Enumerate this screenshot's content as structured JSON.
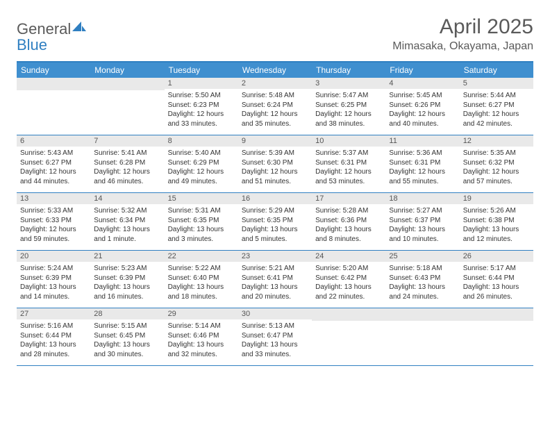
{
  "brand": {
    "part1": "General",
    "part2": "Blue"
  },
  "title": "April 2025",
  "location": "Mimasaka, Okayama, Japan",
  "colors": {
    "header_bar": "#3f8fcf",
    "accent_border": "#2f7fc1",
    "daynum_bg": "#e9e9e9",
    "text_gray": "#5a5a5a",
    "body_text": "#333333",
    "background": "#ffffff"
  },
  "typography": {
    "title_fontsize": 30,
    "location_fontsize": 16,
    "dayhead_fontsize": 12,
    "daynum_fontsize": 11,
    "body_fontsize": 10
  },
  "dayheads": [
    "Sunday",
    "Monday",
    "Tuesday",
    "Wednesday",
    "Thursday",
    "Friday",
    "Saturday"
  ],
  "weeks": [
    [
      {
        "n": "",
        "sr": "",
        "ss": "",
        "dl": ""
      },
      {
        "n": "",
        "sr": "",
        "ss": "",
        "dl": ""
      },
      {
        "n": "1",
        "sr": "Sunrise: 5:50 AM",
        "ss": "Sunset: 6:23 PM",
        "dl": "Daylight: 12 hours and 33 minutes."
      },
      {
        "n": "2",
        "sr": "Sunrise: 5:48 AM",
        "ss": "Sunset: 6:24 PM",
        "dl": "Daylight: 12 hours and 35 minutes."
      },
      {
        "n": "3",
        "sr": "Sunrise: 5:47 AM",
        "ss": "Sunset: 6:25 PM",
        "dl": "Daylight: 12 hours and 38 minutes."
      },
      {
        "n": "4",
        "sr": "Sunrise: 5:45 AM",
        "ss": "Sunset: 6:26 PM",
        "dl": "Daylight: 12 hours and 40 minutes."
      },
      {
        "n": "5",
        "sr": "Sunrise: 5:44 AM",
        "ss": "Sunset: 6:27 PM",
        "dl": "Daylight: 12 hours and 42 minutes."
      }
    ],
    [
      {
        "n": "6",
        "sr": "Sunrise: 5:43 AM",
        "ss": "Sunset: 6:27 PM",
        "dl": "Daylight: 12 hours and 44 minutes."
      },
      {
        "n": "7",
        "sr": "Sunrise: 5:41 AM",
        "ss": "Sunset: 6:28 PM",
        "dl": "Daylight: 12 hours and 46 minutes."
      },
      {
        "n": "8",
        "sr": "Sunrise: 5:40 AM",
        "ss": "Sunset: 6:29 PM",
        "dl": "Daylight: 12 hours and 49 minutes."
      },
      {
        "n": "9",
        "sr": "Sunrise: 5:39 AM",
        "ss": "Sunset: 6:30 PM",
        "dl": "Daylight: 12 hours and 51 minutes."
      },
      {
        "n": "10",
        "sr": "Sunrise: 5:37 AM",
        "ss": "Sunset: 6:31 PM",
        "dl": "Daylight: 12 hours and 53 minutes."
      },
      {
        "n": "11",
        "sr": "Sunrise: 5:36 AM",
        "ss": "Sunset: 6:31 PM",
        "dl": "Daylight: 12 hours and 55 minutes."
      },
      {
        "n": "12",
        "sr": "Sunrise: 5:35 AM",
        "ss": "Sunset: 6:32 PM",
        "dl": "Daylight: 12 hours and 57 minutes."
      }
    ],
    [
      {
        "n": "13",
        "sr": "Sunrise: 5:33 AM",
        "ss": "Sunset: 6:33 PM",
        "dl": "Daylight: 12 hours and 59 minutes."
      },
      {
        "n": "14",
        "sr": "Sunrise: 5:32 AM",
        "ss": "Sunset: 6:34 PM",
        "dl": "Daylight: 13 hours and 1 minute."
      },
      {
        "n": "15",
        "sr": "Sunrise: 5:31 AM",
        "ss": "Sunset: 6:35 PM",
        "dl": "Daylight: 13 hours and 3 minutes."
      },
      {
        "n": "16",
        "sr": "Sunrise: 5:29 AM",
        "ss": "Sunset: 6:35 PM",
        "dl": "Daylight: 13 hours and 5 minutes."
      },
      {
        "n": "17",
        "sr": "Sunrise: 5:28 AM",
        "ss": "Sunset: 6:36 PM",
        "dl": "Daylight: 13 hours and 8 minutes."
      },
      {
        "n": "18",
        "sr": "Sunrise: 5:27 AM",
        "ss": "Sunset: 6:37 PM",
        "dl": "Daylight: 13 hours and 10 minutes."
      },
      {
        "n": "19",
        "sr": "Sunrise: 5:26 AM",
        "ss": "Sunset: 6:38 PM",
        "dl": "Daylight: 13 hours and 12 minutes."
      }
    ],
    [
      {
        "n": "20",
        "sr": "Sunrise: 5:24 AM",
        "ss": "Sunset: 6:39 PM",
        "dl": "Daylight: 13 hours and 14 minutes."
      },
      {
        "n": "21",
        "sr": "Sunrise: 5:23 AM",
        "ss": "Sunset: 6:39 PM",
        "dl": "Daylight: 13 hours and 16 minutes."
      },
      {
        "n": "22",
        "sr": "Sunrise: 5:22 AM",
        "ss": "Sunset: 6:40 PM",
        "dl": "Daylight: 13 hours and 18 minutes."
      },
      {
        "n": "23",
        "sr": "Sunrise: 5:21 AM",
        "ss": "Sunset: 6:41 PM",
        "dl": "Daylight: 13 hours and 20 minutes."
      },
      {
        "n": "24",
        "sr": "Sunrise: 5:20 AM",
        "ss": "Sunset: 6:42 PM",
        "dl": "Daylight: 13 hours and 22 minutes."
      },
      {
        "n": "25",
        "sr": "Sunrise: 5:18 AM",
        "ss": "Sunset: 6:43 PM",
        "dl": "Daylight: 13 hours and 24 minutes."
      },
      {
        "n": "26",
        "sr": "Sunrise: 5:17 AM",
        "ss": "Sunset: 6:44 PM",
        "dl": "Daylight: 13 hours and 26 minutes."
      }
    ],
    [
      {
        "n": "27",
        "sr": "Sunrise: 5:16 AM",
        "ss": "Sunset: 6:44 PM",
        "dl": "Daylight: 13 hours and 28 minutes."
      },
      {
        "n": "28",
        "sr": "Sunrise: 5:15 AM",
        "ss": "Sunset: 6:45 PM",
        "dl": "Daylight: 13 hours and 30 minutes."
      },
      {
        "n": "29",
        "sr": "Sunrise: 5:14 AM",
        "ss": "Sunset: 6:46 PM",
        "dl": "Daylight: 13 hours and 32 minutes."
      },
      {
        "n": "30",
        "sr": "Sunrise: 5:13 AM",
        "ss": "Sunset: 6:47 PM",
        "dl": "Daylight: 13 hours and 33 minutes."
      },
      {
        "n": "",
        "sr": "",
        "ss": "",
        "dl": ""
      },
      {
        "n": "",
        "sr": "",
        "ss": "",
        "dl": ""
      },
      {
        "n": "",
        "sr": "",
        "ss": "",
        "dl": ""
      }
    ]
  ]
}
